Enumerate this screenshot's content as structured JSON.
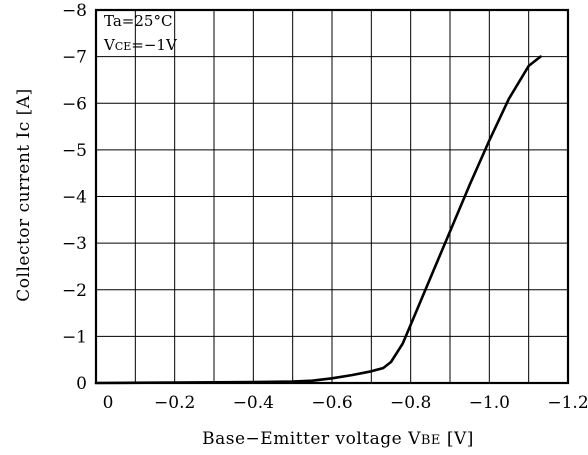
{
  "chart_data": {
    "type": "line",
    "title": "",
    "xlabel_main": "Base−Emitter voltage V",
    "xlabel_sub": "BE",
    "xlabel_unit": " [V]",
    "ylabel": "Collector current Ic [A]",
    "xlim": [
      0,
      -1.2
    ],
    "ylim": [
      0,
      -8
    ],
    "x_ticks": [
      {
        "value": 0,
        "label": "0"
      },
      {
        "value": -0.2,
        "label": "−0.2"
      },
      {
        "value": -0.4,
        "label": "−0.4"
      },
      {
        "value": -0.6,
        "label": "−0.6"
      },
      {
        "value": -0.8,
        "label": "−0.8"
      },
      {
        "value": -1.0,
        "label": "−1.0"
      },
      {
        "value": -1.2,
        "label": "−1.2"
      }
    ],
    "y_ticks": [
      {
        "value": 0,
        "label": "0"
      },
      {
        "value": -1,
        "label": "−1"
      },
      {
        "value": -2,
        "label": "−2"
      },
      {
        "value": -3,
        "label": "−3"
      },
      {
        "value": -4,
        "label": "−4"
      },
      {
        "value": -5,
        "label": "−5"
      },
      {
        "value": -6,
        "label": "−6"
      },
      {
        "value": -7,
        "label": "−7"
      },
      {
        "value": -8,
        "label": "−8"
      }
    ],
    "grid": true,
    "x_grid_step": -0.1,
    "y_grid_step": -1,
    "annotations": {
      "line1": "Ta=25°C",
      "line2_main": "V",
      "line2_sub": "CE",
      "line2_rest": "=−1V"
    },
    "series": [
      {
        "x": [
          0,
          -0.2,
          -0.4,
          -0.5,
          -0.55,
          -0.6,
          -0.65,
          -0.7,
          -0.73,
          -0.75,
          -0.78,
          -0.8,
          -0.85,
          -0.9,
          -0.95,
          -1.0,
          -1.05,
          -1.1,
          -1.13
        ],
        "y": [
          0,
          -0.01,
          -0.02,
          -0.03,
          -0.05,
          -0.1,
          -0.17,
          -0.25,
          -0.32,
          -0.45,
          -0.85,
          -1.25,
          -2.25,
          -3.25,
          -4.25,
          -5.2,
          -6.1,
          -6.8,
          -7.0
        ]
      }
    ]
  }
}
